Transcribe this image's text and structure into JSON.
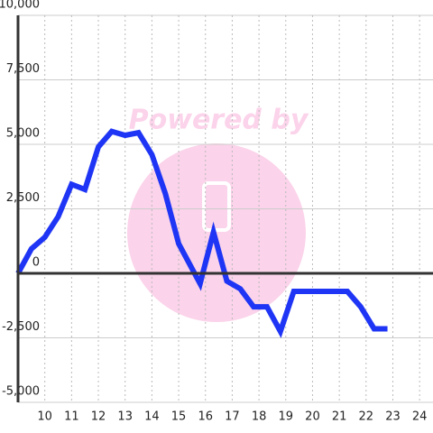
{
  "chart_data": {
    "type": "line",
    "watermark": "Powered by",
    "x": [
      9.0,
      9.5,
      10.0,
      10.5,
      11.0,
      11.5,
      12.0,
      12.5,
      13.0,
      13.5,
      14.0,
      14.5,
      15.0,
      15.8,
      16.3,
      16.8,
      17.3,
      17.8,
      18.3,
      18.8,
      19.3,
      19.8,
      20.3,
      20.8,
      21.3,
      21.8,
      22.3,
      22.8
    ],
    "series": [
      {
        "color": "#1f35f5",
        "values": [
          0,
          950,
          1400,
          2200,
          3450,
          3250,
          4900,
          5500,
          5350,
          5450,
          4600,
          3100,
          1150,
          -400,
          1600,
          -300,
          -600,
          -1300,
          -1300,
          -2250,
          -700,
          -700,
          -700,
          -700,
          -700,
          -1300,
          -2150,
          -2150
        ]
      }
    ],
    "xlim": [
      9,
      24.5
    ],
    "xticks": [
      10,
      11,
      12,
      13,
      14,
      15,
      16,
      17,
      18,
      19,
      20,
      21,
      22,
      23,
      24
    ],
    "ylim": [
      -5000,
      10000
    ],
    "yticks": [
      {
        "value": -5000,
        "label": "-5,000"
      },
      {
        "value": -2500,
        "label": "-2,500"
      },
      0,
      {
        "value": 2500,
        "label": "2,500"
      },
      {
        "value": 5000,
        "label": "5,000"
      },
      {
        "value": 7500,
        "label": "7,500"
      },
      {
        "value": 10000,
        "label": "10,000"
      }
    ],
    "grid": true
  }
}
